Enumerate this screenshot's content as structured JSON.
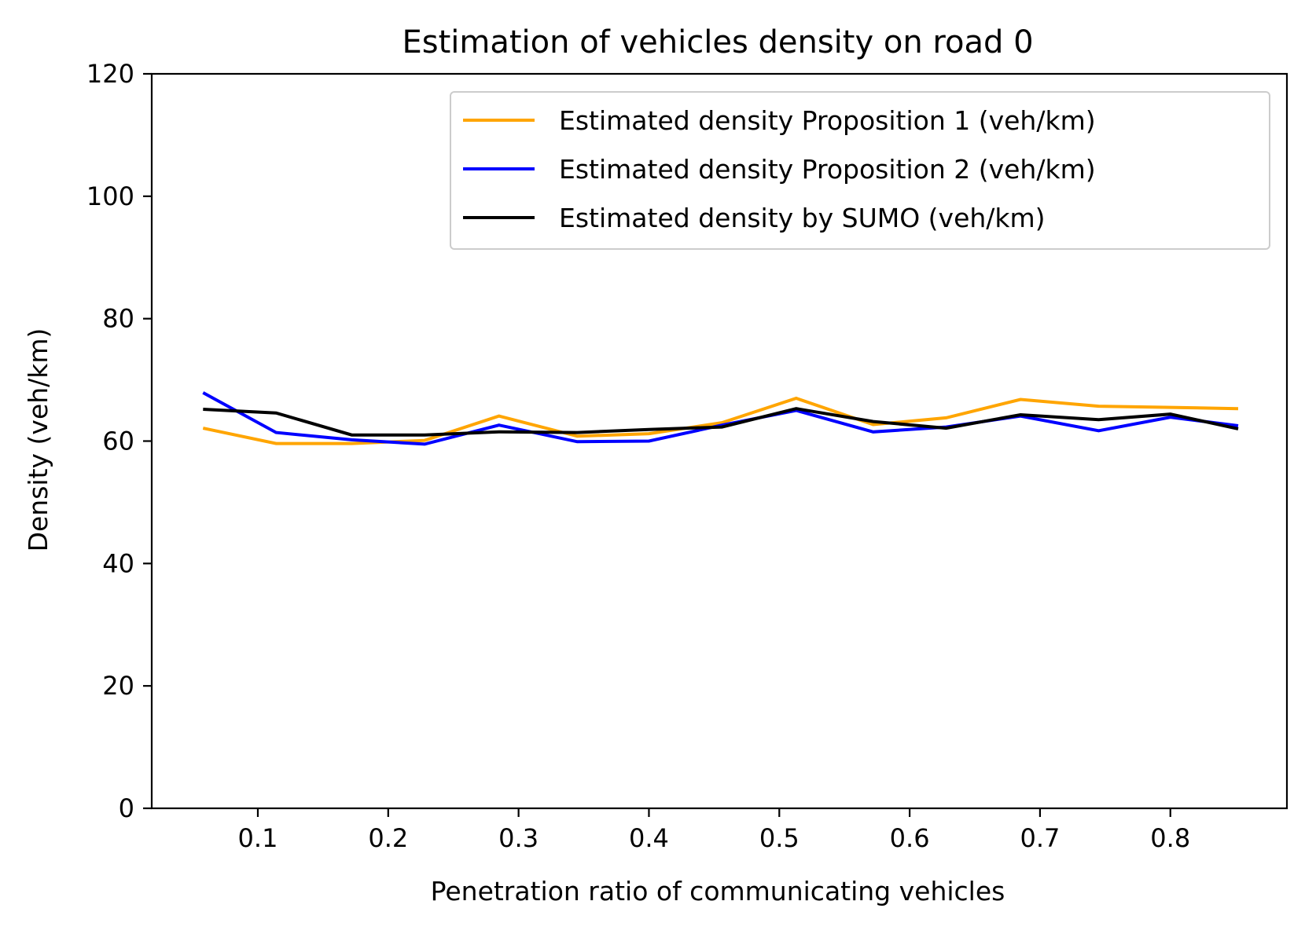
{
  "chart_data": {
    "type": "line",
    "title": "Estimation of vehicles density on road 0",
    "xlabel": "Penetration ratio of communicating vehicles",
    "ylabel": "Density (veh/km)",
    "xlim": [
      0.0186,
      0.8894
    ],
    "ylim": [
      0,
      120
    ],
    "xticks": [
      0.1,
      0.2,
      0.3,
      0.4,
      0.5,
      0.6,
      0.7,
      0.8
    ],
    "xtick_labels": [
      "0.1",
      "0.2",
      "0.3",
      "0.4",
      "0.5",
      "0.6",
      "0.7",
      "0.8"
    ],
    "yticks": [
      0,
      20,
      40,
      60,
      80,
      100,
      120
    ],
    "ytick_labels": [
      "0",
      "20",
      "40",
      "60",
      "80",
      "100",
      "120"
    ],
    "grid": false,
    "legend_position": "top-right",
    "x": [
      0.058,
      0.114,
      0.172,
      0.228,
      0.285,
      0.345,
      0.4,
      0.456,
      0.513,
      0.572,
      0.628,
      0.685,
      0.745,
      0.8,
      0.852
    ],
    "series": [
      {
        "name": "Estimated density Proposition 1 (veh/km)",
        "color": "#ffa500",
        "values": [
          62.1,
          59.6,
          59.6,
          60.1,
          64.1,
          60.8,
          61.2,
          63.0,
          67.0,
          62.7,
          63.8,
          66.8,
          65.7,
          65.5,
          65.3
        ]
      },
      {
        "name": "Estimated density Proposition 2 (veh/km)",
        "color": "#0000ff",
        "values": [
          67.9,
          61.4,
          60.2,
          59.5,
          62.6,
          59.9,
          60.0,
          62.6,
          65.0,
          61.5,
          62.3,
          64.1,
          61.7,
          63.9,
          62.5
        ]
      },
      {
        "name": "Estimated density by SUMO (veh/km)",
        "color": "#000000",
        "values": [
          65.2,
          64.6,
          61.0,
          61.0,
          61.5,
          61.4,
          61.9,
          62.3,
          65.3,
          63.2,
          62.1,
          64.3,
          63.5,
          64.4,
          62.0
        ]
      }
    ]
  }
}
